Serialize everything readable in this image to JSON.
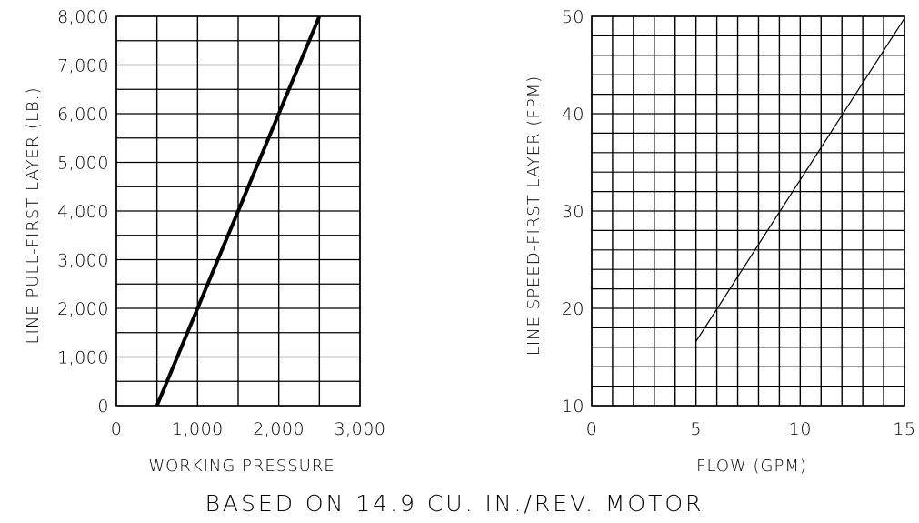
{
  "caption": "BASED ON 14.9 CU. IN./REV. MOTOR",
  "chart_data": [
    {
      "type": "line",
      "xlabel": "WORKING PRESSURE",
      "ylabel": "LINE PULL-FIRST LAYER (LB.)",
      "xlim": [
        0,
        3000
      ],
      "ylim": [
        0,
        8000
      ],
      "x_ticks": [
        0,
        1000,
        2000,
        3000
      ],
      "x_tick_labels": [
        "0",
        "1,000",
        "2,000",
        "3,000"
      ],
      "y_ticks": [
        0,
        1000,
        2000,
        3000,
        4000,
        5000,
        6000,
        7000,
        8000
      ],
      "y_tick_labels": [
        "0",
        "1,000",
        "2,000",
        "3,000",
        "4,000",
        "5,000",
        "6,000",
        "7,000",
        "8,000"
      ],
      "grid": true,
      "grid_x_step": 500,
      "grid_y_step": 500,
      "series": [
        {
          "x": [
            500,
            2500
          ],
          "y": [
            0,
            8000
          ]
        }
      ]
    },
    {
      "type": "line",
      "xlabel": "FLOW (GPM)",
      "ylabel": "LINE SPEED-FIRST LAYER (FPM)",
      "xlim": [
        0,
        15
      ],
      "ylim": [
        10,
        50
      ],
      "x_ticks": [
        0,
        5,
        10,
        15
      ],
      "x_tick_labels": [
        "0",
        "5",
        "10",
        "15"
      ],
      "y_ticks": [
        10,
        20,
        30,
        40,
        50
      ],
      "y_tick_labels": [
        "10",
        "20",
        "30",
        "40",
        "50"
      ],
      "grid": true,
      "grid_x_step": 1,
      "grid_y_step": 2,
      "series": [
        {
          "x": [
            5,
            15
          ],
          "y": [
            16.6,
            49.8
          ]
        }
      ]
    }
  ]
}
